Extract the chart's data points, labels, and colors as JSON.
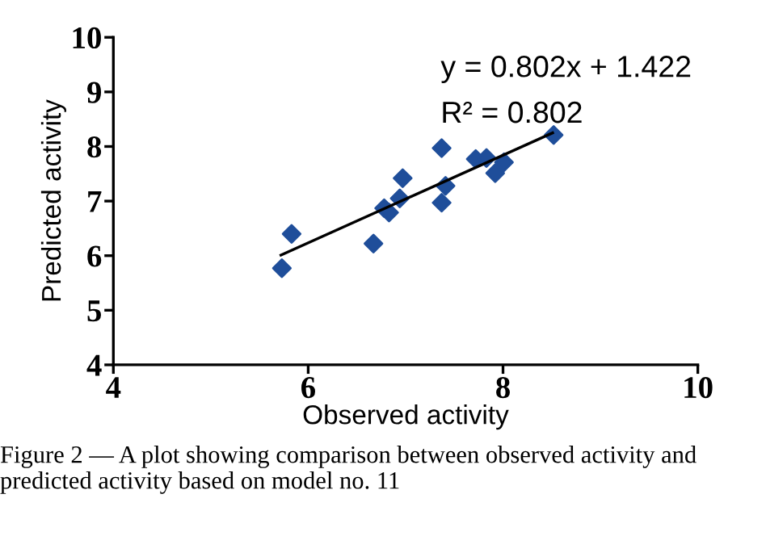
{
  "chart_data": {
    "type": "scatter",
    "xlabel": "Observed activity",
    "ylabel": "Predicted activity",
    "xlim": [
      4,
      10
    ],
    "ylim": [
      4,
      10
    ],
    "xticks": [
      4,
      6,
      8,
      10
    ],
    "yticks": [
      4,
      5,
      6,
      7,
      8,
      9,
      10
    ],
    "grid": false,
    "legend": false,
    "marker": "diamond",
    "series": [
      {
        "color": "#1f4e9a",
        "x": [
          5.73,
          5.83,
          6.67,
          6.78,
          6.83,
          6.94,
          6.97,
          7.37,
          7.37,
          7.41,
          7.72,
          7.83,
          7.92,
          8.01,
          8.52
        ],
        "values": [
          5.77,
          6.4,
          6.22,
          6.87,
          6.79,
          7.05,
          7.42,
          7.97,
          6.97,
          7.28,
          7.77,
          7.79,
          7.51,
          7.71,
          8.21
        ]
      },
      {
        "type": "line",
        "color": "#000000",
        "x": [
          5.72,
          8.51
        ],
        "values": [
          6.01,
          8.25
        ],
        "line_style": "solid",
        "marker": "none"
      }
    ],
    "annotations": [
      "y = 0.802x + 1.422",
      "R² = 0.802",
      "Figure 2 — A plot showing comparison between observed activity and predicted activity based on model no. 11"
    ]
  }
}
